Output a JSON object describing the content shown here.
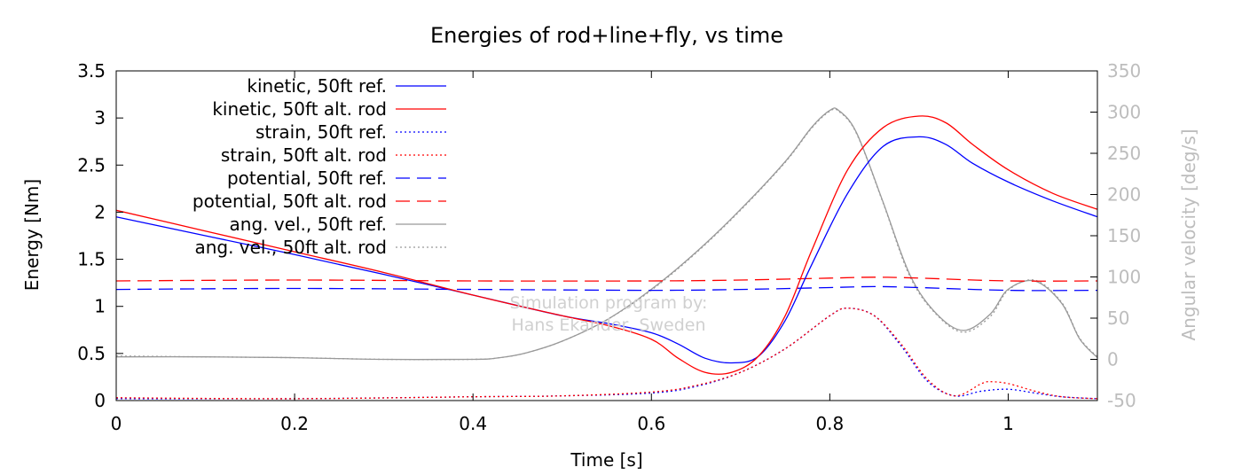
{
  "chart_data": {
    "type": "line",
    "title": "Energies of rod+line+fly, vs time",
    "xlabel": "Time [s]",
    "ylabel": "Energy [Nm]",
    "y2label": "Angular velocity [deg/s]",
    "xlim": [
      0,
      1.1
    ],
    "ylim": [
      0,
      3.5
    ],
    "y2lim": [
      -50,
      350
    ],
    "xticks": [
      "0",
      "0.2",
      "0.4",
      "0.6",
      "0.8",
      "1"
    ],
    "xtick_values": [
      0,
      0.2,
      0.4,
      0.6,
      0.8,
      1.0
    ],
    "yticks": [
      "0",
      "0.5",
      "1",
      "1.5",
      "2",
      "2.5",
      "3",
      "3.5"
    ],
    "ytick_values": [
      0,
      0.5,
      1,
      1.5,
      2,
      2.5,
      3,
      3.5
    ],
    "y2ticks": [
      "-50",
      "0",
      "50",
      "100",
      "150",
      "200",
      "250",
      "300",
      "350"
    ],
    "y2tick_values": [
      -50,
      0,
      50,
      100,
      150,
      200,
      250,
      300,
      350
    ],
    "legend_position": "top-left",
    "watermark": [
      "Simulation program by:",
      "Hans Ekander, Sweden"
    ],
    "series": [
      {
        "name": "kinetic, 50ft ref.",
        "color": "#0000ff",
        "dash": "solid",
        "axis": "left",
        "x": [
          0,
          0.1,
          0.2,
          0.3,
          0.4,
          0.5,
          0.55,
          0.6,
          0.63,
          0.66,
          0.69,
          0.72,
          0.75,
          0.78,
          0.82,
          0.86,
          0.9,
          0.93,
          0.96,
          1.0,
          1.05,
          1.1
        ],
        "y": [
          1.95,
          1.75,
          1.55,
          1.34,
          1.12,
          0.9,
          0.82,
          0.72,
          0.6,
          0.45,
          0.4,
          0.47,
          0.85,
          1.45,
          2.2,
          2.7,
          2.8,
          2.72,
          2.52,
          2.32,
          2.12,
          1.95
        ]
      },
      {
        "name": "kinetic, 50ft alt. rod",
        "color": "#ff0000",
        "dash": "solid",
        "axis": "left",
        "x": [
          0,
          0.1,
          0.2,
          0.3,
          0.4,
          0.5,
          0.55,
          0.6,
          0.63,
          0.66,
          0.69,
          0.72,
          0.75,
          0.78,
          0.82,
          0.86,
          0.9,
          0.93,
          0.96,
          1.0,
          1.05,
          1.1
        ],
        "y": [
          2.02,
          1.8,
          1.58,
          1.36,
          1.12,
          0.9,
          0.8,
          0.65,
          0.45,
          0.3,
          0.3,
          0.47,
          0.9,
          1.6,
          2.45,
          2.9,
          3.02,
          2.95,
          2.72,
          2.45,
          2.2,
          2.03
        ]
      },
      {
        "name": "strain, 50ft ref.",
        "color": "#0000ff",
        "dash": "dotted",
        "axis": "left",
        "x": [
          0,
          0.2,
          0.4,
          0.5,
          0.6,
          0.65,
          0.7,
          0.75,
          0.8,
          0.82,
          0.85,
          0.88,
          0.91,
          0.94,
          0.97,
          1.0,
          1.03,
          1.06,
          1.1
        ],
        "y": [
          0.02,
          0.02,
          0.04,
          0.05,
          0.08,
          0.15,
          0.3,
          0.55,
          0.9,
          0.98,
          0.9,
          0.58,
          0.2,
          0.05,
          0.1,
          0.12,
          0.08,
          0.04,
          0.02
        ]
      },
      {
        "name": "strain, 50ft alt. rod",
        "color": "#ff0000",
        "dash": "dotted",
        "axis": "left",
        "x": [
          0,
          0.2,
          0.4,
          0.5,
          0.6,
          0.65,
          0.7,
          0.75,
          0.8,
          0.82,
          0.85,
          0.88,
          0.91,
          0.94,
          0.97,
          0.98,
          1.0,
          1.03,
          1.06,
          1.1
        ],
        "y": [
          0.03,
          0.02,
          0.04,
          0.05,
          0.09,
          0.16,
          0.3,
          0.55,
          0.9,
          0.98,
          0.9,
          0.6,
          0.22,
          0.05,
          0.18,
          0.2,
          0.18,
          0.1,
          0.04,
          0.02
        ]
      },
      {
        "name": "potential, 50ft ref.",
        "color": "#0000ff",
        "dash": "dashed",
        "axis": "left",
        "x": [
          0,
          0.2,
          0.4,
          0.6,
          0.7,
          0.8,
          0.85,
          0.9,
          1.0,
          1.1
        ],
        "y": [
          1.18,
          1.19,
          1.18,
          1.17,
          1.18,
          1.2,
          1.21,
          1.2,
          1.17,
          1.17
        ]
      },
      {
        "name": "potential, 50ft alt. rod",
        "color": "#ff0000",
        "dash": "dashed",
        "axis": "left",
        "x": [
          0,
          0.2,
          0.4,
          0.6,
          0.7,
          0.8,
          0.85,
          0.9,
          1.0,
          1.1
        ],
        "y": [
          1.27,
          1.28,
          1.27,
          1.27,
          1.28,
          1.3,
          1.31,
          1.3,
          1.27,
          1.27
        ]
      },
      {
        "name": "ang. vel., 50ft ref.",
        "color": "#999999",
        "dash": "solid",
        "axis": "right",
        "x": [
          0,
          0.1,
          0.2,
          0.3,
          0.4,
          0.43,
          0.46,
          0.5,
          0.55,
          0.6,
          0.65,
          0.7,
          0.75,
          0.78,
          0.8,
          0.81,
          0.83,
          0.86,
          0.89,
          0.92,
          0.95,
          0.98,
          1.0,
          1.03,
          1.06,
          1.08,
          1.1
        ],
        "y": [
          3,
          3,
          2,
          0,
          0,
          2,
          8,
          22,
          48,
          85,
          130,
          182,
          240,
          282,
          302,
          302,
          275,
          190,
          102,
          55,
          35,
          55,
          85,
          95,
          68,
          25,
          2
        ]
      },
      {
        "name": "ang. vel., 50ft alt. rod",
        "color": "#999999",
        "dash": "dotted",
        "axis": "right",
        "x": [
          0,
          0.1,
          0.2,
          0.3,
          0.4,
          0.43,
          0.46,
          0.5,
          0.55,
          0.6,
          0.65,
          0.7,
          0.75,
          0.78,
          0.8,
          0.81,
          0.83,
          0.86,
          0.89,
          0.92,
          0.95,
          0.98,
          1.0,
          1.03,
          1.06,
          1.08,
          1.1
        ],
        "y": [
          4,
          3,
          2,
          0,
          0,
          2,
          8,
          22,
          48,
          84,
          129,
          181,
          239,
          281,
          301,
          301,
          274,
          189,
          100,
          54,
          33,
          52,
          84,
          96,
          69,
          26,
          3
        ]
      }
    ]
  }
}
